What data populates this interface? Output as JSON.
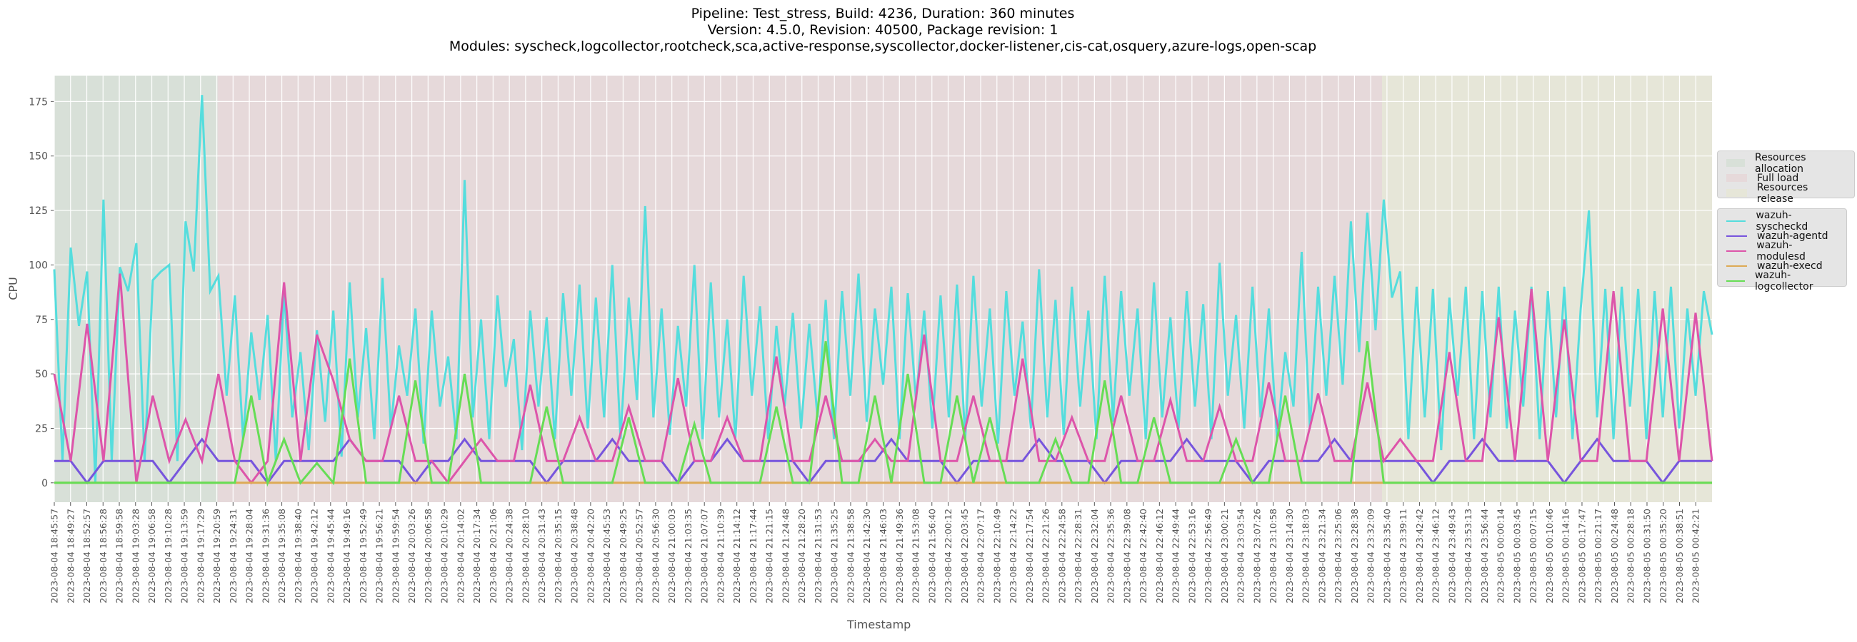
{
  "title_lines": [
    "Pipeline: Test_stress, Build: 4236, Duration: 360 minutes",
    "Version: 4.5.0, Revision: 40500, Package revision: 1",
    "Modules: syscheck,logcollector,rootcheck,sca,active-response,syscollector,docker-listener,cis-cat,osquery,azure-logs,open-scap"
  ],
  "chart_data": {
    "type": "line",
    "title": "Pipeline: Test_stress, Build: 4236, Duration: 360 minutes / Version: 4.5.0, Revision: 40500, Package revision: 1 / Modules: syscheck,logcollector,rootcheck,sca,active-response,syscollector,docker-listener,cis-cat,osquery,azure-logs,open-scap",
    "xlabel": "Timestamp",
    "ylabel": "CPU",
    "ylim": [
      -8.9,
      186.9
    ],
    "yticks": [
      0,
      25,
      50,
      75,
      100,
      125,
      150,
      175
    ],
    "xlim_tick_index": [
      0,
      102
    ],
    "grid": true,
    "legend_placement": "outside-right",
    "x_tick_labels": [
      "2023-08-04 18:45:57",
      "2023-08-04 18:49:27",
      "2023-08-04 18:52:57",
      "2023-08-04 18:56:28",
      "2023-08-04 18:59:58",
      "2023-08-04 19:03:28",
      "2023-08-04 19:06:58",
      "2023-08-04 19:10:28",
      "2023-08-04 19:13:59",
      "2023-08-04 19:17:29",
      "2023-08-04 19:20:59",
      "2023-08-04 19:24:31",
      "2023-08-04 19:28:04",
      "2023-08-04 19:31:36",
      "2023-08-04 19:35:08",
      "2023-08-04 19:38:40",
      "2023-08-04 19:42:12",
      "2023-08-04 19:45:44",
      "2023-08-04 19:49:16",
      "2023-08-04 19:52:49",
      "2023-08-04 19:56:21",
      "2023-08-04 19:59:54",
      "2023-08-04 20:03:26",
      "2023-08-04 20:06:58",
      "2023-08-04 20:10:29",
      "2023-08-04 20:14:02",
      "2023-08-04 20:17:34",
      "2023-08-04 20:21:06",
      "2023-08-04 20:24:38",
      "2023-08-04 20:28:10",
      "2023-08-04 20:31:43",
      "2023-08-04 20:35:15",
      "2023-08-04 20:38:48",
      "2023-08-04 20:42:20",
      "2023-08-04 20:45:53",
      "2023-08-04 20:49:25",
      "2023-08-04 20:52:57",
      "2023-08-04 20:56:30",
      "2023-08-04 21:00:03",
      "2023-08-04 21:03:35",
      "2023-08-04 21:07:07",
      "2023-08-04 21:10:39",
      "2023-08-04 21:14:12",
      "2023-08-04 21:17:44",
      "2023-08-04 21:21:15",
      "2023-08-04 21:24:48",
      "2023-08-04 21:28:20",
      "2023-08-04 21:31:53",
      "2023-08-04 21:35:25",
      "2023-08-04 21:38:58",
      "2023-08-04 21:42:30",
      "2023-08-04 21:46:03",
      "2023-08-04 21:49:36",
      "2023-08-04 21:53:08",
      "2023-08-04 21:56:40",
      "2023-08-04 22:00:12",
      "2023-08-04 22:03:45",
      "2023-08-04 22:07:17",
      "2023-08-04 22:10:49",
      "2023-08-04 22:14:22",
      "2023-08-04 22:17:54",
      "2023-08-04 22:21:26",
      "2023-08-04 22:24:58",
      "2023-08-04 22:28:31",
      "2023-08-04 22:32:04",
      "2023-08-04 22:35:36",
      "2023-08-04 22:39:08",
      "2023-08-04 22:42:40",
      "2023-08-04 22:46:12",
      "2023-08-04 22:49:44",
      "2023-08-04 22:53:16",
      "2023-08-04 22:56:49",
      "2023-08-04 23:00:21",
      "2023-08-04 23:03:54",
      "2023-08-04 23:07:26",
      "2023-08-04 23:10:58",
      "2023-08-04 23:14:30",
      "2023-08-04 23:18:03",
      "2023-08-04 23:21:34",
      "2023-08-04 23:25:06",
      "2023-08-04 23:28:38",
      "2023-08-04 23:32:09",
      "2023-08-04 23:35:40",
      "2023-08-04 23:39:11",
      "2023-08-04 23:42:42",
      "2023-08-04 23:46:12",
      "2023-08-04 23:49:43",
      "2023-08-04 23:53:13",
      "2023-08-04 23:56:44",
      "2023-08-05 00:00:14",
      "2023-08-05 00:03:45",
      "2023-08-05 00:07:15",
      "2023-08-05 00:10:46",
      "2023-08-05 00:14:16",
      "2023-08-05 00:17:47",
      "2023-08-05 00:21:17",
      "2023-08-05 00:24:48",
      "2023-08-05 00:28:18",
      "2023-08-05 00:31:50",
      "2023-08-05 00:35:20",
      "2023-08-05 00:38:51",
      "2023-08-05 00:42:21"
    ],
    "regions": [
      {
        "label": "Resources allocation",
        "start_tick_index": 0,
        "end_tick_index": 10.05,
        "color": "#d8e0d8"
      },
      {
        "label": "Full load",
        "start_tick_index": 10.05,
        "end_tick_index": 81.7,
        "color": "#e6d9da"
      },
      {
        "label": "Resources release",
        "start_tick_index": 81.7,
        "end_tick_index": 102,
        "color": "#e6e6d8"
      }
    ],
    "series": [
      {
        "name": "wazuh-syscheckd",
        "color": "#55dddd",
        "values": [
          98,
          10,
          108,
          72,
          97,
          0,
          130,
          10,
          99,
          88,
          110,
          10,
          93,
          97,
          100,
          10,
          120,
          97,
          178,
          88,
          95,
          40,
          86,
          20,
          69,
          38,
          77,
          10,
          88,
          30,
          60,
          15,
          70,
          28,
          79,
          12,
          92,
          30,
          71,
          20,
          94,
          25,
          63,
          40,
          80,
          18,
          79,
          35,
          58,
          20,
          139,
          30,
          75,
          20,
          86,
          44,
          66,
          15,
          79,
          35,
          76,
          20,
          87,
          40,
          91,
          25,
          85,
          30,
          100,
          20,
          85,
          38,
          127,
          30,
          80,
          22,
          72,
          35,
          100,
          20,
          92,
          30,
          75,
          20,
          95,
          40,
          81,
          20,
          72,
          35,
          78,
          25,
          73,
          30,
          84,
          20,
          88,
          40,
          96,
          28,
          80,
          45,
          90,
          20,
          87,
          38,
          79,
          25,
          86,
          30,
          91,
          20,
          95,
          35,
          80,
          18,
          88,
          40,
          74,
          25,
          98,
          30,
          84,
          22,
          90,
          35,
          79,
          20,
          95,
          28,
          88,
          40,
          80,
          20,
          92,
          30,
          76,
          25,
          88,
          35,
          82,
          20,
          101,
          40,
          77,
          25,
          90,
          30,
          80,
          20,
          60,
          35,
          106,
          25,
          90,
          40,
          95,
          45,
          120,
          60,
          124,
          70,
          130,
          85,
          97,
          20,
          90,
          30,
          89,
          15,
          85,
          40,
          90,
          20,
          88,
          30,
          90,
          25,
          79,
          35,
          90,
          20,
          88,
          30,
          90,
          20,
          80,
          125,
          30,
          89,
          20,
          90,
          35,
          89,
          20,
          88,
          30,
          90,
          25,
          80,
          40,
          88,
          68
        ]
      },
      {
        "name": "wazuh-agentd",
        "color": "#7755dd",
        "values": [
          10,
          10,
          0,
          10,
          10,
          10,
          10,
          0,
          10,
          20,
          10,
          10,
          10,
          0,
          10,
          10,
          10,
          10,
          20,
          10,
          10,
          10,
          0,
          10,
          10,
          20,
          10,
          10,
          10,
          10,
          0,
          10,
          10,
          10,
          20,
          10,
          10,
          10,
          0,
          10,
          10,
          20,
          10,
          10,
          10,
          10,
          0,
          10,
          10,
          10,
          10,
          20,
          10,
          10,
          10,
          0,
          10,
          10,
          10,
          10,
          20,
          10,
          10,
          10,
          0,
          10,
          10,
          10,
          10,
          20,
          10,
          10,
          10,
          0,
          10,
          10,
          10,
          10,
          20,
          10,
          10,
          10,
          10,
          10,
          0,
          10,
          10,
          20,
          10,
          10,
          10,
          10,
          0,
          10,
          20,
          10,
          10,
          10,
          0,
          10,
          10,
          10
        ]
      },
      {
        "name": "wazuh-modulesd",
        "color": "#dd55aa",
        "values": [
          50,
          10,
          73,
          10,
          96,
          0,
          40,
          10,
          29,
          10,
          50,
          10,
          0,
          10,
          92,
          10,
          68,
          47,
          20,
          10,
          10,
          40,
          10,
          10,
          0,
          10,
          20,
          10,
          10,
          45,
          10,
          10,
          30,
          10,
          10,
          35,
          10,
          10,
          48,
          10,
          10,
          30,
          10,
          10,
          58,
          10,
          10,
          40,
          10,
          10,
          20,
          10,
          10,
          68,
          10,
          10,
          40,
          10,
          10,
          57,
          10,
          10,
          30,
          10,
          10,
          40,
          10,
          10,
          38,
          10,
          10,
          35,
          10,
          10,
          46,
          10,
          10,
          41,
          10,
          10,
          46,
          10,
          20,
          10,
          10,
          60,
          10,
          10,
          76,
          10,
          89,
          10,
          75,
          10,
          10,
          88,
          10,
          10,
          80,
          10,
          78,
          10
        ]
      },
      {
        "name": "wazuh-execd",
        "color": "#ddaa55",
        "values": [
          0,
          0,
          0,
          0,
          0,
          0,
          0,
          0,
          0,
          0,
          0,
          0,
          0,
          0,
          0,
          0,
          0,
          0,
          0,
          0,
          0,
          0,
          0,
          0,
          0,
          0,
          0,
          0,
          0,
          0,
          0,
          0,
          0,
          0,
          0,
          0,
          0,
          0,
          0,
          0,
          0,
          0,
          0,
          0,
          0,
          0,
          0,
          0,
          0,
          0,
          0,
          0,
          0,
          0,
          0,
          0,
          0,
          0,
          0,
          0,
          0,
          0,
          0,
          0,
          0,
          0,
          0,
          0,
          0,
          0,
          0,
          0,
          0,
          0,
          0,
          0,
          0,
          0,
          0,
          0,
          0,
          0,
          0,
          0,
          0,
          0,
          0,
          0,
          0,
          0,
          0,
          0,
          0,
          0,
          0,
          0,
          0,
          0,
          0,
          0,
          0,
          0
        ]
      },
      {
        "name": "wazuh-logcollector",
        "color": "#66dd55",
        "values": [
          0,
          0,
          0,
          0,
          0,
          0,
          0,
          0,
          0,
          0,
          0,
          0,
          40,
          0,
          20,
          0,
          9,
          0,
          57,
          0,
          0,
          0,
          47,
          0,
          0,
          50,
          0,
          0,
          0,
          0,
          35,
          0,
          0,
          0,
          0,
          30,
          0,
          0,
          0,
          27,
          0,
          0,
          0,
          0,
          35,
          0,
          0,
          65,
          0,
          0,
          40,
          0,
          50,
          0,
          0,
          40,
          0,
          30,
          0,
          0,
          0,
          20,
          0,
          0,
          47,
          0,
          0,
          30,
          0,
          0,
          0,
          0,
          20,
          0,
          0,
          40,
          0,
          0,
          0,
          0,
          65,
          0,
          0,
          0,
          0,
          0,
          0,
          0,
          0,
          0,
          0,
          0,
          0,
          0,
          0,
          0,
          0,
          0,
          0,
          0,
          0,
          0
        ]
      }
    ]
  }
}
